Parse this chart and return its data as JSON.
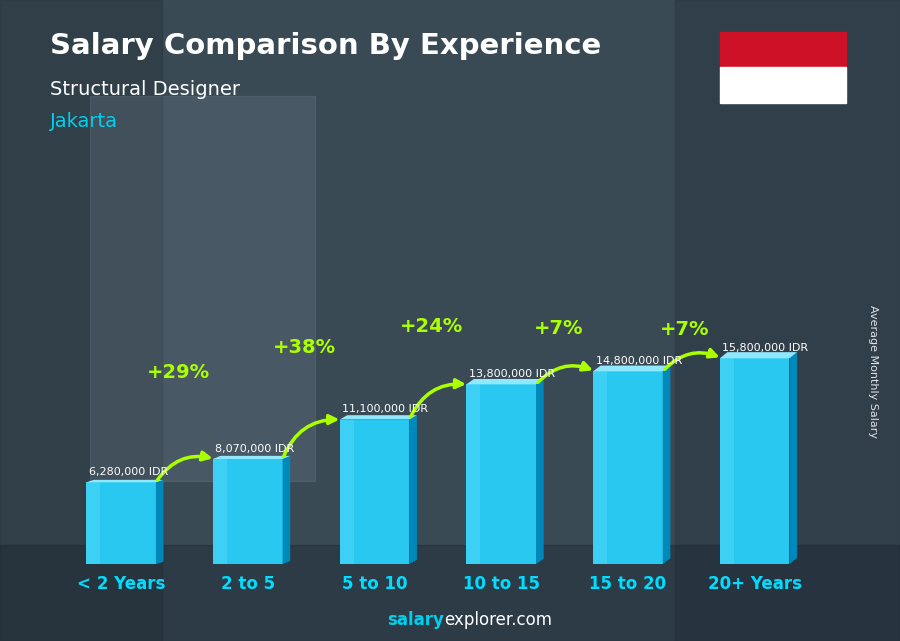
{
  "title": "Salary Comparison By Experience",
  "subtitle": "Structural Designer",
  "city": "Jakarta",
  "ylabel": "Average Monthly Salary",
  "categories": [
    "< 2 Years",
    "2 to 5",
    "5 to 10",
    "10 to 15",
    "15 to 20",
    "20+ Years"
  ],
  "values": [
    6280000,
    8070000,
    11100000,
    13800000,
    14800000,
    15800000
  ],
  "value_labels": [
    "6,280,000 IDR",
    "8,070,000 IDR",
    "11,100,000 IDR",
    "13,800,000 IDR",
    "14,800,000 IDR",
    "15,800,000 IDR"
  ],
  "pct_labels": [
    null,
    "+29%",
    "+38%",
    "+24%",
    "+7%",
    "+7%"
  ],
  "bar_face_color": "#29c8f0",
  "bar_dark_color": "#0088bb",
  "bar_top_color": "#90e8ff",
  "bg_color": "#506070",
  "title_color": "#ffffff",
  "subtitle_color": "#ffffff",
  "city_color": "#00cfee",
  "value_color": "#ffffff",
  "pct_color": "#aaff00",
  "arrow_color": "#aaff00",
  "xlabel_color": "#00ddff",
  "footer_salary_color": "#00cfee",
  "footer_explorer_color": "#ffffff",
  "flag_red": "#CE1126",
  "flag_white": "#ffffff"
}
